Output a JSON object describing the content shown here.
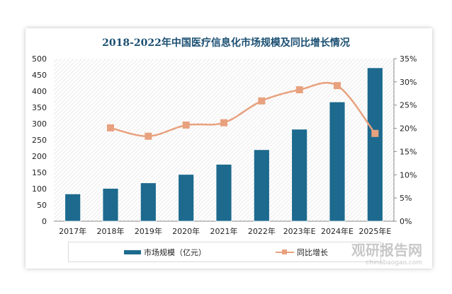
{
  "chart_data": {
    "type": "bar+line",
    "title": "2018-2022年中国医疗信息化市场规模及同比增长情况",
    "categories": [
      "2017年",
      "2018年",
      "2019年",
      "2020年",
      "2021年",
      "2022年",
      "2023年E",
      "2024年E",
      "2025年E"
    ],
    "series": [
      {
        "name": "市场规模（亿元）",
        "type": "bar",
        "axis": "left",
        "color": "#1d6a8e",
        "values": [
          84,
          101,
          118,
          144,
          175,
          220,
          283,
          367,
          472
        ]
      },
      {
        "name": "同比增长",
        "type": "line",
        "axis": "right",
        "color": "#e8a17e",
        "values": [
          null,
          20.1,
          18.3,
          20.7,
          21.2,
          25.9,
          28.3,
          29.2,
          18.9
        ]
      }
    ],
    "ylim": [
      0,
      500
    ],
    "yticks": [
      "0",
      "50",
      "100",
      "150",
      "200",
      "250",
      "300",
      "350",
      "400",
      "450",
      "500"
    ],
    "y2lim": [
      0,
      35
    ],
    "y2ticks": [
      "0%",
      "5%",
      "10%",
      "15%",
      "20%",
      "25%",
      "30%",
      "35%"
    ],
    "legend": "bottom"
  },
  "watermark": {
    "brand": "观研报告网",
    "url": "chinabaogao.com"
  }
}
